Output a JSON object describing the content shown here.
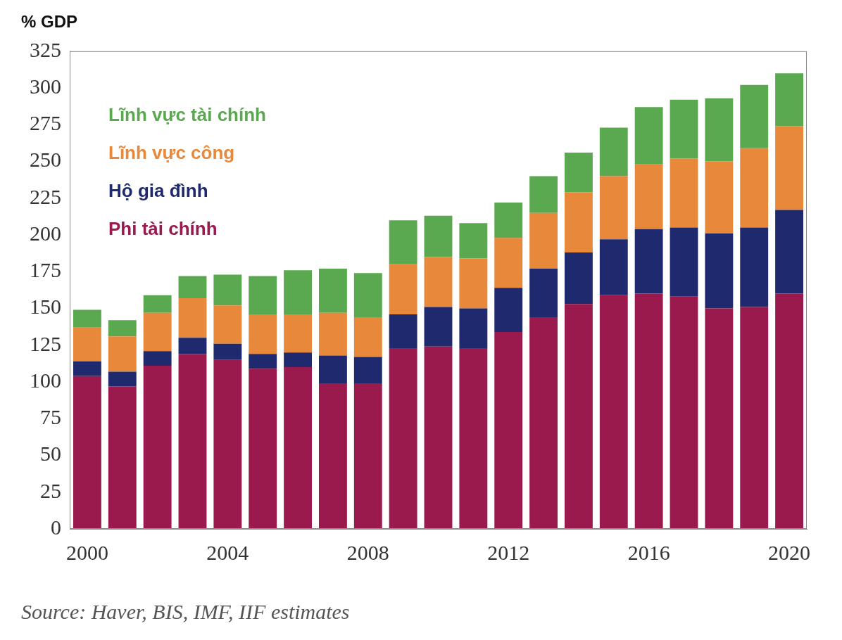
{
  "chart_data": {
    "type": "bar",
    "title": "% GDP",
    "source": "Source: Haver, BIS, IMF, IIF estimates",
    "categories": [
      "2000",
      null,
      null,
      null,
      "2004",
      null,
      null,
      null,
      "2008",
      null,
      null,
      null,
      "2012",
      null,
      null,
      null,
      "2016",
      null,
      null,
      null,
      "2020"
    ],
    "series": [
      {
        "name": "Phi tài chính",
        "color": "#9b1a4e",
        "values": [
          104,
          97,
          111,
          119,
          115,
          109,
          110,
          99,
          99,
          123,
          124,
          123,
          134,
          144,
          153,
          159,
          160,
          158,
          150,
          151,
          160
        ]
      },
      {
        "name": "Hộ gia đình",
        "color": "#1f2a6e",
        "values": [
          10,
          10,
          10,
          11,
          11,
          10,
          10,
          19,
          18,
          23,
          27,
          27,
          30,
          33,
          35,
          38,
          44,
          47,
          51,
          54,
          57
        ]
      },
      {
        "name": "Lĩnh vực công",
        "color": "#e8883a",
        "values": [
          23,
          24,
          26,
          27,
          26,
          27,
          26,
          29,
          27,
          34,
          34,
          34,
          34,
          38,
          41,
          43,
          44,
          47,
          49,
          54,
          57
        ]
      },
      {
        "name": "Lĩnh vực tài chính",
        "color": "#5aa84f",
        "values": [
          12,
          11,
          12,
          15,
          21,
          26,
          30,
          30,
          30,
          30,
          28,
          24,
          24,
          25,
          27,
          33,
          39,
          40,
          43,
          43,
          36
        ]
      }
    ],
    "stacked": true,
    "legend": "top-left",
    "grid": false,
    "ylim": [
      0,
      325
    ],
    "yticks": [
      0,
      25,
      50,
      75,
      100,
      125,
      150,
      175,
      200,
      225,
      250,
      275,
      300,
      325
    ]
  }
}
